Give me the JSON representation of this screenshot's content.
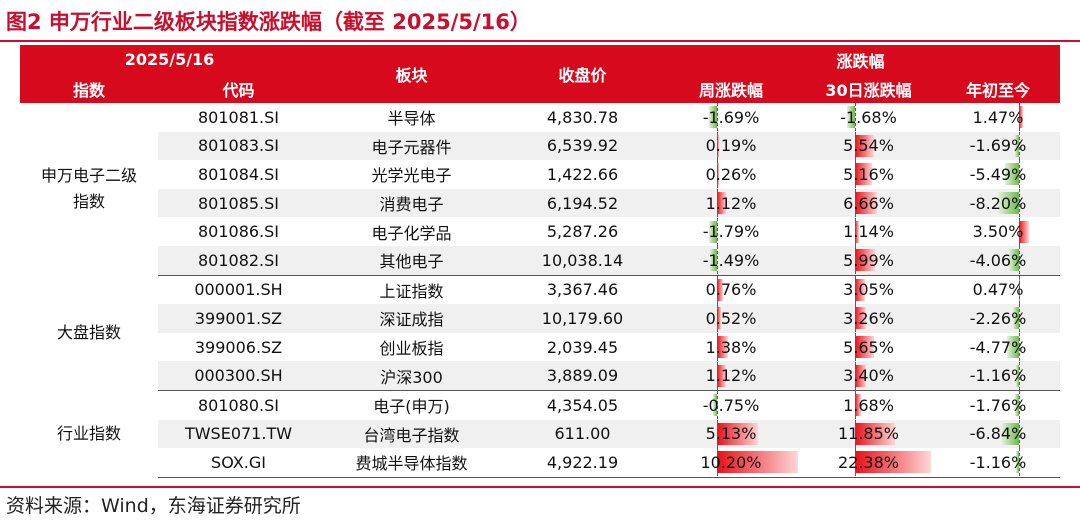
{
  "title": "图2  申万行业二级板块指数涨跌幅（截至 2025/5/16）",
  "source": "资料来源：Wind，东海证券研究所",
  "header": {
    "date": "2025/5/16",
    "index": "指数",
    "code": "代码",
    "sector": "板块",
    "close": "收盘价",
    "change": "涨跌幅",
    "week": "周涨跌幅",
    "d30": "30日涨跌幅",
    "ytd": "年初至今"
  },
  "colors": {
    "accent": "#d7091d",
    "positive_bar": "#e8101a",
    "negative_bar": "#6fb84c"
  },
  "groups": [
    {
      "name": "申万电子二级\n指数",
      "rows": [
        {
          "code": "801081.SI",
          "sector": "半导体",
          "close": "4,830.78",
          "week": "-1.69%",
          "d30": "-1.68%",
          "ytd": "1.47%",
          "week_v": -1.69,
          "d30_v": -1.68,
          "ytd_v": 1.47
        },
        {
          "code": "801083.SI",
          "sector": "电子元器件",
          "close": "6,539.92",
          "week": "0.19%",
          "d30": "5.54%",
          "ytd": "-1.69%",
          "week_v": 0.19,
          "d30_v": 5.54,
          "ytd_v": -1.69
        },
        {
          "code": "801084.SI",
          "sector": "光学光电子",
          "close": "1,422.66",
          "week": "0.26%",
          "d30": "5.16%",
          "ytd": "-5.49%",
          "week_v": 0.26,
          "d30_v": 5.16,
          "ytd_v": -5.49
        },
        {
          "code": "801085.SI",
          "sector": "消费电子",
          "close": "6,194.52",
          "week": "1.12%",
          "d30": "6.66%",
          "ytd": "-8.20%",
          "week_v": 1.12,
          "d30_v": 6.66,
          "ytd_v": -8.2
        },
        {
          "code": "801086.SI",
          "sector": "电子化学品",
          "close": "5,287.26",
          "week": "-1.79%",
          "d30": "1.14%",
          "ytd": "3.50%",
          "week_v": -1.79,
          "d30_v": 1.14,
          "ytd_v": 3.5
        },
        {
          "code": "801082.SI",
          "sector": "其他电子",
          "close": "10,038.14",
          "week": "-1.49%",
          "d30": "5.99%",
          "ytd": "-4.06%",
          "week_v": -1.49,
          "d30_v": 5.99,
          "ytd_v": -4.06
        }
      ]
    },
    {
      "name": "大盘指数",
      "rows": [
        {
          "code": "000001.SH",
          "sector": "上证指数",
          "close": "3,367.46",
          "week": "0.76%",
          "d30": "3.05%",
          "ytd": "0.47%",
          "week_v": 0.76,
          "d30_v": 3.05,
          "ytd_v": 0.47
        },
        {
          "code": "399001.SZ",
          "sector": "深证成指",
          "close": "10,179.60",
          "week": "0.52%",
          "d30": "3.26%",
          "ytd": "-2.26%",
          "week_v": 0.52,
          "d30_v": 3.26,
          "ytd_v": -2.26
        },
        {
          "code": "399006.SZ",
          "sector": "创业板指",
          "close": "2,039.45",
          "week": "1.38%",
          "d30": "5.65%",
          "ytd": "-4.77%",
          "week_v": 1.38,
          "d30_v": 5.65,
          "ytd_v": -4.77
        },
        {
          "code": "000300.SH",
          "sector": "沪深300",
          "close": "3,889.09",
          "week": "1.12%",
          "d30": "3.40%",
          "ytd": "-1.16%",
          "week_v": 1.12,
          "d30_v": 3.4,
          "ytd_v": -1.16
        }
      ]
    },
    {
      "name": "行业指数",
      "rows": [
        {
          "code": "801080.SI",
          "sector": "电子(申万)",
          "close": "4,354.05",
          "week": "-0.75%",
          "d30": "1.68%",
          "ytd": "-1.76%",
          "week_v": -0.75,
          "d30_v": 1.68,
          "ytd_v": -1.76
        },
        {
          "code": "TWSE071.TW",
          "sector": "台湾电子指数",
          "close": "611.00",
          "week": "5.13%",
          "d30": "11.85%",
          "ytd": "-6.84%",
          "week_v": 5.13,
          "d30_v": 11.85,
          "ytd_v": -6.84
        },
        {
          "code": "SOX.GI",
          "sector": "费城半导体指数",
          "close": "4,922.19",
          "week": "10.20%",
          "d30": "22.38%",
          "ytd": "-1.16%",
          "week_v": 10.2,
          "d30_v": 22.38,
          "ytd_v": -1.16
        }
      ]
    }
  ]
}
